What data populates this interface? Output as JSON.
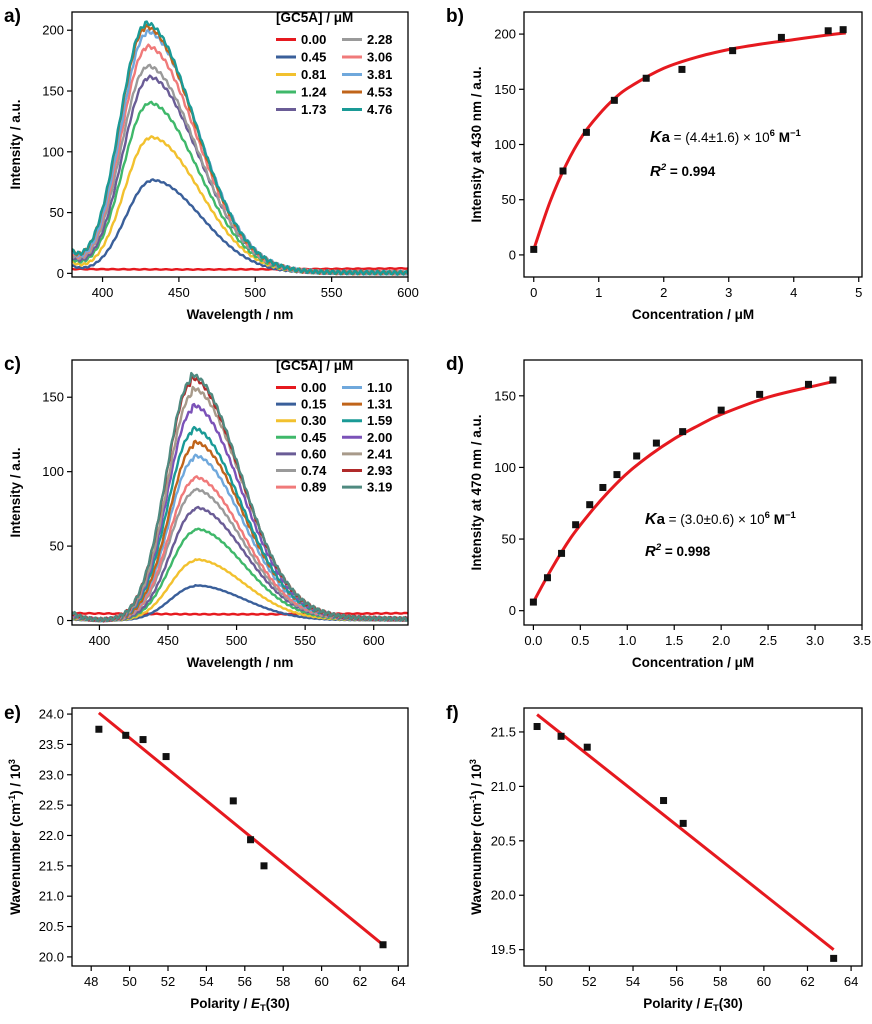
{
  "chart_data": [
    {
      "panel": "a)",
      "type": "line",
      "xlabel": "Wavelength / nm",
      "ylabel": "Intensity / a.u.",
      "xlim": [
        380,
        600
      ],
      "ylim": [
        -3,
        215
      ],
      "xticks": [
        400,
        450,
        500,
        550,
        600
      ],
      "yticks": [
        0,
        50,
        100,
        150,
        200
      ],
      "legend_title": "[GC5A] / μM",
      "legend_columns": 2,
      "spectrum": {
        "base_at_380": 0.075,
        "left_width": 24,
        "right_width": 46,
        "tail": 0.01
      },
      "series": [
        {
          "name": "0.00",
          "color": "#e6191f",
          "peak_x": 460,
          "peak_y": 5,
          "flat": true
        },
        {
          "name": "0.45",
          "color": "#3a5f9a",
          "peak_x": 432,
          "peak_y": 76
        },
        {
          "name": "0.81",
          "color": "#f2c12e",
          "peak_x": 431,
          "peak_y": 111
        },
        {
          "name": "1.24",
          "color": "#3fb86a",
          "peak_x": 430,
          "peak_y": 139
        },
        {
          "name": "1.73",
          "color": "#6a5c96",
          "peak_x": 430,
          "peak_y": 160
        },
        {
          "name": "2.28",
          "color": "#9a9a9a",
          "peak_x": 429,
          "peak_y": 169
        },
        {
          "name": "3.06",
          "color": "#f07a7a",
          "peak_x": 429,
          "peak_y": 185
        },
        {
          "name": "3.81",
          "color": "#6fa8dc",
          "peak_x": 429,
          "peak_y": 197
        },
        {
          "name": "4.53",
          "color": "#c0641a",
          "peak_x": 428,
          "peak_y": 201
        },
        {
          "name": "4.76",
          "color": "#1a9a96",
          "peak_x": 428,
          "peak_y": 204
        }
      ]
    },
    {
      "panel": "b)",
      "type": "scatter",
      "xlabel": "Concentration / μM",
      "ylabel": "Intensity at 430 nm / a.u.",
      "xlim": [
        -0.15,
        5.05
      ],
      "ylim": [
        -20,
        220
      ],
      "xticks": [
        0,
        1,
        2,
        3,
        4,
        5
      ],
      "yticks": [
        0,
        50,
        100,
        150,
        200
      ],
      "annotations": {
        "ka_label": "K",
        "ka_sub": "a",
        "ka_text": " = (4.4±1.6) × 10",
        "ka_exp": "6",
        "ka_unit": " M",
        "ka_unit_exp": "−1",
        "r2_label": "R",
        "r2_exp": "2",
        "r2_text": " = 0.994"
      },
      "points": {
        "x": [
          0.0,
          0.45,
          0.81,
          1.24,
          1.73,
          2.28,
          3.06,
          3.81,
          4.53,
          4.76
        ],
        "y": [
          5,
          76,
          111,
          140,
          160,
          168,
          185,
          197,
          203,
          204
        ]
      },
      "fit": {
        "color": "#e6191f",
        "x": [
          0.0,
          0.25,
          0.5,
          0.75,
          1.0,
          1.25,
          1.5,
          2.0,
          2.5,
          3.0,
          3.5,
          4.0,
          4.5,
          4.8
        ],
        "y": [
          5,
          48,
          82,
          108,
          127,
          142,
          153,
          169,
          179,
          186,
          191,
          195,
          199,
          201
        ]
      }
    },
    {
      "panel": "c)",
      "type": "line",
      "xlabel": "Wavelength / nm",
      "ylabel": "Intensity / a.u.",
      "xlim": [
        380,
        625
      ],
      "ylim": [
        -3,
        175
      ],
      "xticks": [
        400,
        450,
        500,
        550,
        600
      ],
      "yticks": [
        0,
        50,
        100,
        150
      ],
      "legend_title": "[GC5A] / μM",
      "legend_columns": 2,
      "spectrum": {
        "base_at_380": 0.035,
        "left_width": 26,
        "right_width": 50,
        "tail": 0.025
      },
      "series": [
        {
          "name": "0.00",
          "color": "#e6191f",
          "peak_x": 500,
          "peak_y": 6,
          "flat": true
        },
        {
          "name": "0.15",
          "color": "#3a5f9a",
          "peak_x": 470,
          "peak_y": 23
        },
        {
          "name": "0.30",
          "color": "#f2c12e",
          "peak_x": 470,
          "peak_y": 40
        },
        {
          "name": "0.45",
          "color": "#3fb86a",
          "peak_x": 470,
          "peak_y": 60
        },
        {
          "name": "0.60",
          "color": "#6a5c96",
          "peak_x": 470,
          "peak_y": 74
        },
        {
          "name": "0.74",
          "color": "#9a9a9a",
          "peak_x": 469,
          "peak_y": 86
        },
        {
          "name": "0.89",
          "color": "#f07a7a",
          "peak_x": 469,
          "peak_y": 94
        },
        {
          "name": "1.10",
          "color": "#6fa8dc",
          "peak_x": 469,
          "peak_y": 108
        },
        {
          "name": "1.31",
          "color": "#c0641a",
          "peak_x": 469,
          "peak_y": 117
        },
        {
          "name": "1.59",
          "color": "#1a9a96",
          "peak_x": 468,
          "peak_y": 126
        },
        {
          "name": "2.00",
          "color": "#7b52b8",
          "peak_x": 468,
          "peak_y": 141
        },
        {
          "name": "2.41",
          "color": "#a89a8a",
          "peak_x": 468,
          "peak_y": 152
        },
        {
          "name": "2.93",
          "color": "#b02a2a",
          "peak_x": 467,
          "peak_y": 159
        },
        {
          "name": "3.19",
          "color": "#4f8a80",
          "peak_x": 467,
          "peak_y": 161
        }
      ]
    },
    {
      "panel": "d)",
      "type": "scatter",
      "xlabel": "Concentration / μM",
      "ylabel": "Intensity at 470 nm / a.u.",
      "xlim": [
        -0.1,
        3.5
      ],
      "ylim": [
        -10,
        175
      ],
      "xticks": [
        0.0,
        0.5,
        1.0,
        1.5,
        2.0,
        2.5,
        3.0,
        3.5
      ],
      "yticks": [
        0,
        50,
        100,
        150
      ],
      "annotations": {
        "ka_label": "K",
        "ka_sub": "a",
        "ka_text": " = (3.0±0.6) × 10",
        "ka_exp": "6",
        "ka_unit": " M",
        "ka_unit_exp": "−1",
        "r2_label": "R",
        "r2_exp": "2",
        "r2_text": " = 0.998"
      },
      "points": {
        "x": [
          0.0,
          0.15,
          0.3,
          0.45,
          0.6,
          0.74,
          0.89,
          1.1,
          1.31,
          1.59,
          2.0,
          2.41,
          2.93,
          3.19
        ],
        "y": [
          6,
          23,
          40,
          60,
          74,
          86,
          95,
          108,
          117,
          125,
          140,
          151,
          158,
          161
        ]
      },
      "fit": {
        "color": "#e6191f",
        "x": [
          0.0,
          0.2,
          0.4,
          0.6,
          0.8,
          1.0,
          1.25,
          1.5,
          1.75,
          2.0,
          2.5,
          3.0,
          3.2
        ],
        "y": [
          6,
          30,
          51,
          68,
          83,
          96,
          109,
          120,
          129,
          137,
          149,
          157,
          160
        ]
      }
    },
    {
      "panel": "e)",
      "type": "scatter",
      "xlabel": "Polarity / E_T(30)",
      "xlabel_parts": {
        "prefix": "Polarity / ",
        "italic": "E",
        "sub": "T",
        "suffix": "(30)"
      },
      "ylabel": "Wavenumber (cm⁻¹) / 10³",
      "xlim": [
        47,
        64.5
      ],
      "ylim": [
        19.85,
        24.1
      ],
      "xticks": [
        48,
        50,
        52,
        54,
        56,
        58,
        60,
        62,
        64
      ],
      "yticks": [
        20.0,
        20.5,
        21.0,
        21.5,
        22.0,
        22.5,
        23.0,
        23.5,
        24.0
      ],
      "ytick_decimals": 1,
      "points": {
        "x": [
          48.4,
          49.8,
          50.7,
          51.9,
          55.4,
          56.3,
          57.0,
          63.2
        ],
        "y": [
          23.75,
          23.65,
          23.58,
          23.3,
          22.57,
          21.93,
          21.5,
          20.2
        ]
      },
      "fit": {
        "color": "#e6191f",
        "x": [
          48.4,
          63.2
        ],
        "y": [
          24.02,
          20.2
        ]
      }
    },
    {
      "panel": "f)",
      "type": "scatter",
      "xlabel": "Polarity / E_T(30)",
      "xlabel_parts": {
        "prefix": "Polarity / ",
        "italic": "E",
        "sub": "T",
        "suffix": "(30)"
      },
      "ylabel": "Wavenumber (cm⁻¹) / 10³",
      "xlim": [
        49,
        64.5
      ],
      "ylim": [
        19.35,
        21.72
      ],
      "xticks": [
        50,
        52,
        54,
        56,
        58,
        60,
        62,
        64
      ],
      "yticks": [
        19.5,
        20.0,
        20.5,
        21.0,
        21.5
      ],
      "ytick_decimals": 1,
      "points": {
        "x": [
          49.6,
          50.7,
          51.9,
          55.4,
          56.3,
          63.2
        ],
        "y": [
          21.55,
          21.46,
          21.36,
          20.87,
          20.66,
          19.42
        ]
      },
      "fit": {
        "color": "#e6191f",
        "x": [
          49.6,
          63.2
        ],
        "y": [
          21.66,
          19.5
        ]
      }
    }
  ]
}
